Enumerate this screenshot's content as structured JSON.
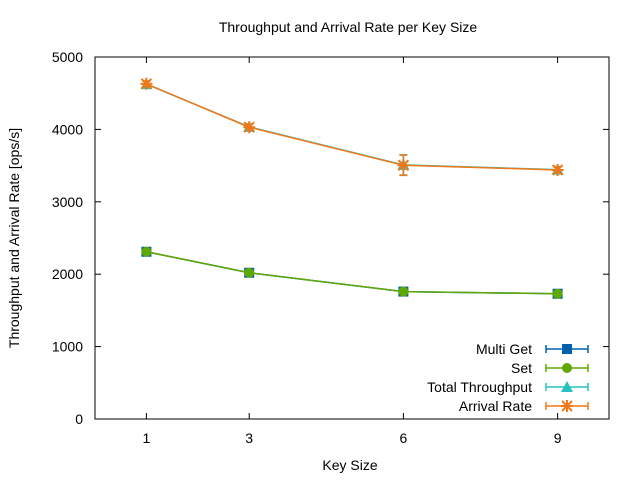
{
  "chart_data": {
    "type": "line",
    "title": "Throughput and Arrival Rate per Key Size",
    "xlabel": "Key Size",
    "ylabel": "Throughput and Arrival Rate [ops/s]",
    "x": [
      1,
      3,
      6,
      9
    ],
    "xlim": [
      0,
      10
    ],
    "ylim": [
      0,
      5000
    ],
    "yticks": [
      0,
      1000,
      2000,
      3000,
      4000,
      5000
    ],
    "xticks": [
      1,
      3,
      6,
      9
    ],
    "grid": false,
    "legend_position": "bottom-right",
    "series": [
      {
        "name": "Multi Get",
        "values": [
          2310,
          2020,
          1760,
          1730
        ],
        "errors": [
          30,
          30,
          30,
          30
        ],
        "color": "#0060ad",
        "marker": "square"
      },
      {
        "name": "Set",
        "values": [
          2310,
          2020,
          1760,
          1730
        ],
        "errors": [
          30,
          30,
          30,
          30
        ],
        "color": "#5ea800",
        "marker": "circle"
      },
      {
        "name": "Total Throughput",
        "values": [
          4625,
          4035,
          3510,
          3445
        ],
        "errors": [
          40,
          40,
          140,
          40
        ],
        "color": "#28c0c0",
        "marker": "triangle"
      },
      {
        "name": "Arrival Rate",
        "values": [
          4630,
          4030,
          3505,
          3440
        ],
        "errors": [
          40,
          40,
          140,
          40
        ],
        "color": "#f07818",
        "marker": "star"
      }
    ]
  }
}
